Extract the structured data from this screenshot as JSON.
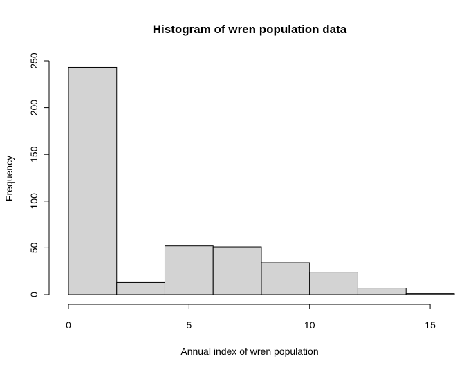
{
  "chart_data": {
    "type": "bar",
    "title": "Histogram of wren population data",
    "xlabel": "Annual index of wren population",
    "ylabel": "Frequency",
    "bins": [
      {
        "x0": 0,
        "x1": 2,
        "count": 243
      },
      {
        "x0": 2,
        "x1": 4,
        "count": 13
      },
      {
        "x0": 4,
        "x1": 6,
        "count": 52
      },
      {
        "x0": 6,
        "x1": 8,
        "count": 51
      },
      {
        "x0": 8,
        "x1": 10,
        "count": 34
      },
      {
        "x0": 10,
        "x1": 12,
        "count": 24
      },
      {
        "x0": 12,
        "x1": 14,
        "count": 7
      },
      {
        "x0": 14,
        "x1": 16,
        "count": 1
      }
    ],
    "xticks": [
      0,
      5,
      10,
      15
    ],
    "yticks": [
      0,
      50,
      100,
      150,
      200,
      250
    ],
    "xlim": [
      0,
      15.6
    ],
    "ylim": [
      0,
      250
    ],
    "bar_fill": "#d3d3d3",
    "bar_stroke": "#000000",
    "grid": false,
    "legend": "none"
  }
}
